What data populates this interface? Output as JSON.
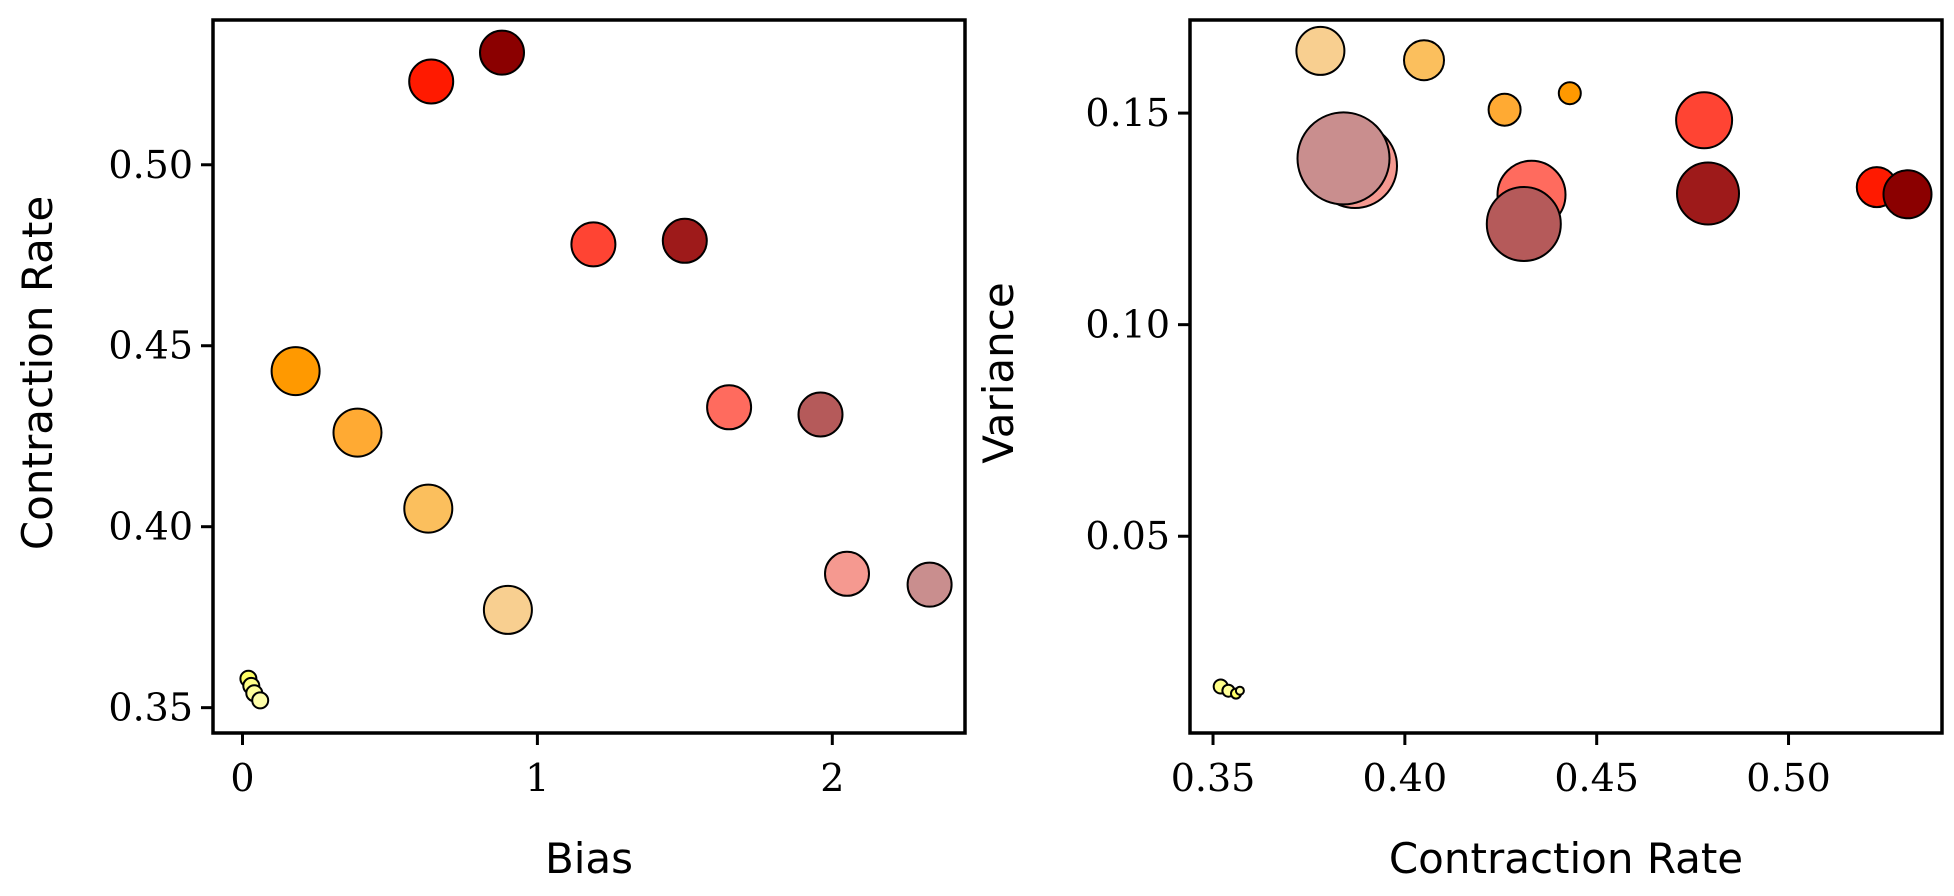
{
  "chart_data": [
    {
      "type": "scatter",
      "xlabel": "Bias",
      "ylabel": "Contraction Rate",
      "xlim": [
        -0.1,
        2.45
      ],
      "ylim": [
        0.343,
        0.54
      ],
      "xticks": [
        0,
        1,
        2
      ],
      "xtick_labels": [
        "0",
        "1",
        "2"
      ],
      "yticks": [
        0.35,
        0.4,
        0.45,
        0.5
      ],
      "ytick_labels": [
        "0.35",
        "0.40",
        "0.45",
        "0.50"
      ],
      "grid": false,
      "points": [
        {
          "x": 0.02,
          "y": 0.358,
          "size": 8,
          "color": "#ffff66"
        },
        {
          "x": 0.03,
          "y": 0.356,
          "size": 8,
          "color": "#ffff88"
        },
        {
          "x": 0.04,
          "y": 0.354,
          "size": 8,
          "color": "#ffff99"
        },
        {
          "x": 0.06,
          "y": 0.352,
          "size": 8,
          "color": "#ffffaa"
        },
        {
          "x": 0.18,
          "y": 0.443,
          "size": 24,
          "color": "#ff9900"
        },
        {
          "x": 0.39,
          "y": 0.426,
          "size": 24,
          "color": "#ffaa33"
        },
        {
          "x": 0.63,
          "y": 0.405,
          "size": 24,
          "color": "#fbbf5d"
        },
        {
          "x": 0.9,
          "y": 0.377,
          "size": 24,
          "color": "#f8cf90"
        },
        {
          "x": 0.64,
          "y": 0.523,
          "size": 22,
          "color": "#ff1a00"
        },
        {
          "x": 0.88,
          "y": 0.531,
          "size": 22,
          "color": "#8b0000"
        },
        {
          "x": 1.19,
          "y": 0.478,
          "size": 22,
          "color": "#ff4433"
        },
        {
          "x": 1.5,
          "y": 0.479,
          "size": 22,
          "color": "#9e1a1a"
        },
        {
          "x": 1.65,
          "y": 0.433,
          "size": 22,
          "color": "#ff6b5e"
        },
        {
          "x": 1.96,
          "y": 0.431,
          "size": 22,
          "color": "#b55a5a"
        },
        {
          "x": 2.05,
          "y": 0.387,
          "size": 22,
          "color": "#f59990"
        },
        {
          "x": 2.33,
          "y": 0.384,
          "size": 22,
          "color": "#c98e8e"
        }
      ]
    },
    {
      "type": "scatter",
      "xlabel": "Contraction Rate",
      "ylabel": "Variance",
      "xlim": [
        0.344,
        0.54
      ],
      "ylim": [
        0.0035,
        0.172
      ],
      "xticks": [
        0.35,
        0.4,
        0.45,
        0.5
      ],
      "xtick_labels": [
        "0.35",
        "0.40",
        "0.45",
        "0.50"
      ],
      "yticks": [
        0.05,
        0.1,
        0.15
      ],
      "ytick_labels": [
        "0.05",
        "0.10",
        "0.15"
      ],
      "grid": false,
      "points": [
        {
          "x": 0.352,
          "y": 0.0145,
          "size": 7,
          "color": "#ffff88"
        },
        {
          "x": 0.354,
          "y": 0.0135,
          "size": 6,
          "color": "#ffff99"
        },
        {
          "x": 0.356,
          "y": 0.0128,
          "size": 5,
          "color": "#ffff66"
        },
        {
          "x": 0.357,
          "y": 0.0135,
          "size": 4,
          "color": "#ffffaa"
        },
        {
          "x": 0.378,
          "y": 0.1647,
          "size": 24,
          "color": "#f8cf90"
        },
        {
          "x": 0.405,
          "y": 0.1625,
          "size": 20,
          "color": "#fbbf5d"
        },
        {
          "x": 0.426,
          "y": 0.1508,
          "size": 16,
          "color": "#ffaa33"
        },
        {
          "x": 0.443,
          "y": 0.1547,
          "size": 11,
          "color": "#ff9900"
        },
        {
          "x": 0.478,
          "y": 0.1483,
          "size": 28,
          "color": "#ff4433"
        },
        {
          "x": 0.523,
          "y": 0.1325,
          "size": 20,
          "color": "#ff1a00"
        },
        {
          "x": 0.531,
          "y": 0.1308,
          "size": 24,
          "color": "#8b0000"
        },
        {
          "x": 0.479,
          "y": 0.131,
          "size": 31,
          "color": "#9e1a1a"
        },
        {
          "x": 0.387,
          "y": 0.1375,
          "size": 42,
          "color": "#f59990"
        },
        {
          "x": 0.384,
          "y": 0.1393,
          "size": 46,
          "color": "#c98e8e"
        },
        {
          "x": 0.433,
          "y": 0.1307,
          "size": 34,
          "color": "#ff6b5e"
        },
        {
          "x": 0.431,
          "y": 0.1238,
          "size": 37,
          "color": "#b55a5a"
        }
      ]
    }
  ]
}
